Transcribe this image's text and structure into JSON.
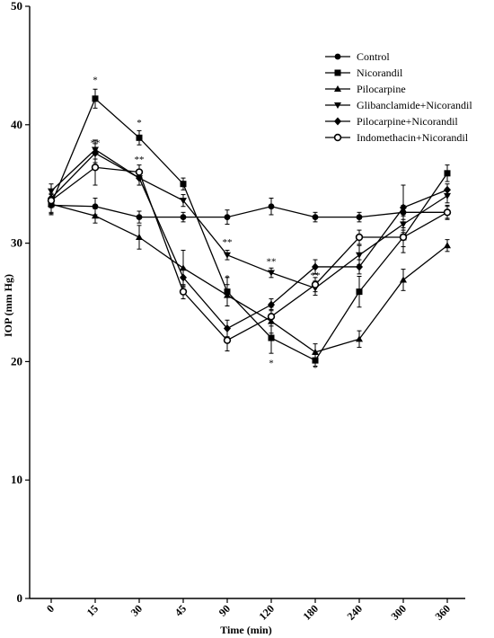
{
  "chart_data": {
    "type": "line",
    "title": "",
    "xlabel": "Time (min)",
    "ylabel": "IOP (mm Hg)",
    "categories": [
      "0",
      "15",
      "30",
      "45",
      "90",
      "120",
      "180",
      "240",
      "300",
      "360"
    ],
    "ylim": [
      0,
      50
    ],
    "yticks": [
      0,
      10,
      20,
      30,
      40,
      50
    ],
    "grid": false,
    "legend_position": "top-right",
    "series": [
      {
        "name": "Control",
        "marker": "circle",
        "values": [
          33.2,
          33.1,
          32.2,
          32.2,
          32.2,
          33.1,
          32.2,
          32.2,
          32.6,
          32.6
        ],
        "errors": [
          0.6,
          0.7,
          0.5,
          0.4,
          0.6,
          0.7,
          0.4,
          0.4,
          0.6,
          0.6
        ]
      },
      {
        "name": "Nicorandil",
        "marker": "square",
        "values": [
          33.3,
          42.2,
          38.9,
          35.0,
          25.9,
          22.0,
          20.1,
          25.9,
          30.5,
          35.9
        ],
        "errors": [
          0.8,
          0.8,
          0.6,
          0.5,
          1.2,
          1.3,
          0.5,
          1.3,
          1.3,
          0.7
        ]
      },
      {
        "name": "Pilocarpine",
        "marker": "triangle-up",
        "values": [
          33.3,
          32.3,
          30.5,
          27.9,
          25.6,
          23.4,
          20.8,
          21.9,
          26.9,
          29.8
        ],
        "errors": [
          0.9,
          0.6,
          1.0,
          1.5,
          0.9,
          1.0,
          0.7,
          0.7,
          0.9,
          0.5
        ]
      },
      {
        "name": "Glibanclamide+Nicorandil",
        "marker": "triangle-down",
        "values": [
          34.4,
          37.9,
          35.5,
          33.6,
          29.0,
          27.5,
          26.2,
          29.0,
          31.6,
          34.0
        ],
        "errors": [
          0.6,
          0.8,
          0.6,
          0.5,
          0.4,
          0.4,
          0.6,
          0.8,
          0.7,
          0.6
        ]
      },
      {
        "name": "Pilocarpine+Nicorandil",
        "marker": "diamond",
        "values": [
          33.8,
          37.6,
          35.5,
          27.1,
          22.8,
          24.8,
          28.0,
          28.0,
          33.0,
          34.5
        ],
        "errors": [
          0.7,
          0.8,
          0.6,
          0.8,
          0.7,
          0.5,
          0.6,
          0.6,
          1.9,
          0.5
        ]
      },
      {
        "name": "Indomethacin+Nicorandil",
        "marker": "open-circle",
        "values": [
          33.6,
          36.4,
          36.0,
          25.9,
          21.8,
          23.8,
          26.5,
          30.5,
          30.5,
          32.6
        ],
        "errors": [
          0.6,
          1.5,
          0.6,
          0.6,
          0.9,
          0.8,
          0.6,
          0.6,
          0.8,
          0.5
        ]
      }
    ],
    "annotations": [
      {
        "category": "15",
        "y": 43.5,
        "text": "*"
      },
      {
        "category": "15",
        "y": 38.2,
        "text": "**"
      },
      {
        "category": "30",
        "y": 39.9,
        "text": "*"
      },
      {
        "category": "30",
        "y": 36.8,
        "text": "**"
      },
      {
        "category": "90",
        "y": 29.8,
        "text": "**"
      },
      {
        "category": "90",
        "y": 26.8,
        "text": "*"
      },
      {
        "category": "120",
        "y": 28.2,
        "text": "**"
      },
      {
        "category": "120",
        "y": 19.6,
        "text": "*"
      },
      {
        "category": "180",
        "y": 27.0,
        "text": "**"
      },
      {
        "category": "180",
        "y": 19.2,
        "text": "*"
      }
    ]
  }
}
